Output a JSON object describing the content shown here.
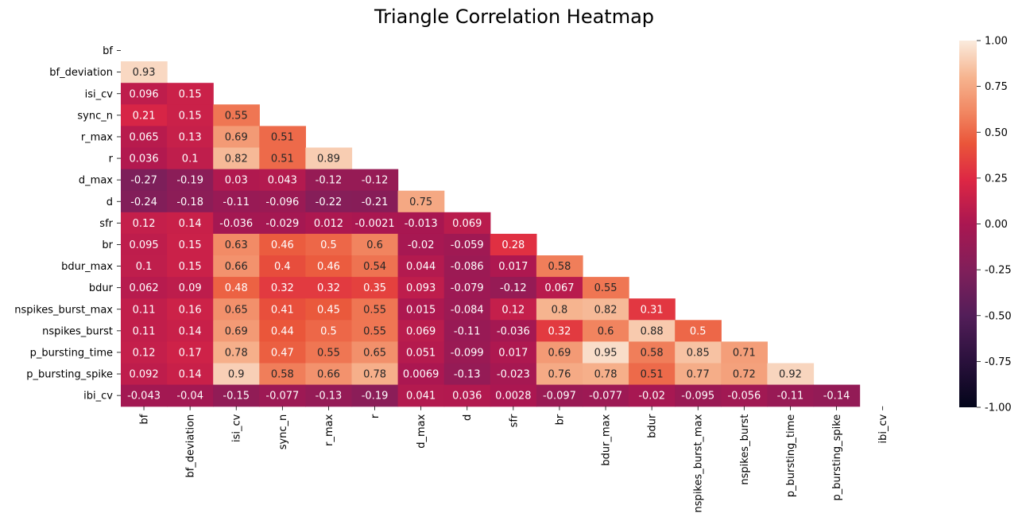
{
  "chart_data": {
    "type": "heatmap",
    "title": "Triangle Correlation Heatmap",
    "variables": [
      "bf",
      "bf_deviation",
      "isi_cv",
      "sync_n",
      "r_max",
      "r",
      "d_max",
      "d",
      "sfr",
      "br",
      "bdur_max",
      "bdur",
      "nspikes_burst_max",
      "nspikes_burst",
      "p_bursting_time",
      "p_bursting_spike",
      "ibi_cv"
    ],
    "mask": "upper triangle including diagonal",
    "lower_triangle": [
      [],
      [
        "0.93"
      ],
      [
        "0.096",
        "0.15"
      ],
      [
        "0.21",
        "0.15",
        "0.55"
      ],
      [
        "0.065",
        "0.13",
        "0.69",
        "0.51"
      ],
      [
        "0.036",
        "0.1",
        "0.82",
        "0.51",
        "0.89"
      ],
      [
        "-0.27",
        "-0.19",
        "0.03",
        "0.043",
        "-0.12",
        "-0.12"
      ],
      [
        "-0.24",
        "-0.18",
        "-0.11",
        "-0.096",
        "-0.22",
        "-0.21",
        "0.75"
      ],
      [
        "0.12",
        "0.14",
        "-0.036",
        "-0.029",
        "0.012",
        "-0.0021",
        "-0.013",
        "0.069"
      ],
      [
        "0.095",
        "0.15",
        "0.63",
        "0.46",
        "0.5",
        "0.6",
        "-0.02",
        "-0.059",
        "0.28"
      ],
      [
        "0.1",
        "0.15",
        "0.66",
        "0.4",
        "0.46",
        "0.54",
        "0.044",
        "-0.086",
        "0.017",
        "0.58"
      ],
      [
        "0.062",
        "0.09",
        "0.48",
        "0.32",
        "0.32",
        "0.35",
        "0.093",
        "-0.079",
        "-0.12",
        "0.067",
        "0.55"
      ],
      [
        "0.11",
        "0.16",
        "0.65",
        "0.41",
        "0.45",
        "0.55",
        "0.015",
        "-0.084",
        "0.12",
        "0.8",
        "0.82",
        "0.31"
      ],
      [
        "0.11",
        "0.14",
        "0.69",
        "0.44",
        "0.5",
        "0.55",
        "0.069",
        "-0.11",
        "-0.036",
        "0.32",
        "0.6",
        "0.88",
        "0.5"
      ],
      [
        "0.12",
        "0.17",
        "0.78",
        "0.47",
        "0.55",
        "0.65",
        "0.051",
        "-0.099",
        "0.017",
        "0.69",
        "0.95",
        "0.58",
        "0.85",
        "0.71"
      ],
      [
        "0.092",
        "0.14",
        "0.9",
        "0.58",
        "0.66",
        "0.78",
        "0.0069",
        "-0.13",
        "-0.023",
        "0.76",
        "0.78",
        "0.51",
        "0.77",
        "0.72",
        "0.92"
      ],
      [
        "-0.043",
        "-0.04",
        "-0.15",
        "-0.077",
        "-0.13",
        "-0.19",
        "0.041",
        "0.036",
        "0.0028",
        "-0.097",
        "-0.077",
        "-0.02",
        "-0.095",
        "-0.056",
        "-0.11",
        "-0.14"
      ]
    ],
    "colorbar": {
      "vmin": -1.0,
      "vmax": 1.0,
      "ticks": [
        "1.00",
        "0.75",
        "0.50",
        "0.25",
        "0.00",
        "-0.25",
        "-0.50",
        "-0.75",
        "-1.00"
      ],
      "colormap": "rocket"
    }
  }
}
